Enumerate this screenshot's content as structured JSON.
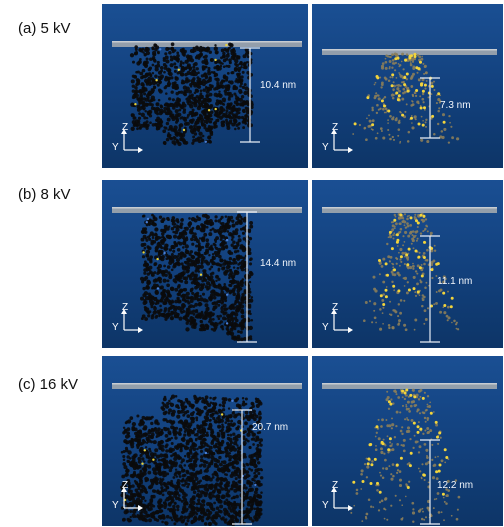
{
  "rows": [
    {
      "label": "(a) 5 kV",
      "left_panel": {
        "scale": "10.4 nm"
      },
      "right_panel": {
        "scale": "7.3 nm"
      }
    },
    {
      "label": "(b) 8 kV",
      "left_panel": {
        "scale": "14.4 nm"
      },
      "right_panel": {
        "scale": "11.1 nm"
      }
    },
    {
      "label": "(c) 16 kV",
      "left_panel": {
        "scale": "20.7 nm"
      },
      "right_panel": {
        "scale": "12.2 nm"
      }
    }
  ],
  "axes": {
    "z": "Z",
    "y": "Y"
  }
}
